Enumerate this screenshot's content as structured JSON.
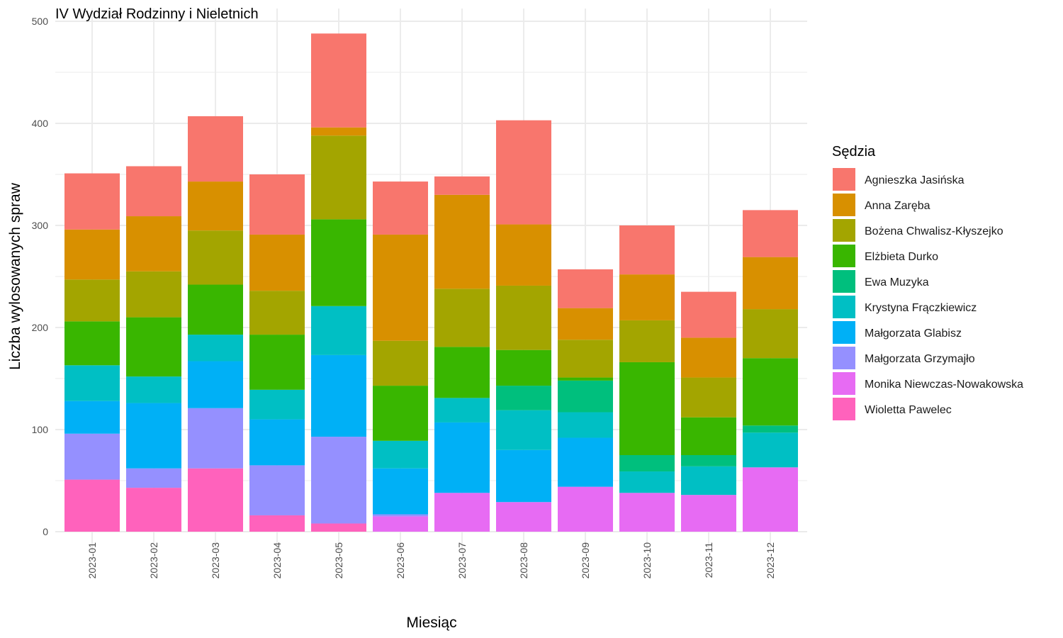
{
  "chart_data": {
    "type": "bar",
    "stacked": true,
    "title": "IV Wydział Rodzinny i Nieletnich",
    "xlabel": "Miesiąc",
    "ylabel": "Liczba wylosowanych spraw",
    "ylim": [
      0,
      500
    ],
    "yticks": [
      0,
      100,
      200,
      300,
      400,
      500
    ],
    "grid": true,
    "legend_title": "Sędzia",
    "legend_position": "right",
    "categories": [
      "2023-01",
      "2023-02",
      "2023-03",
      "2023-04",
      "2023-05",
      "2023-06",
      "2023-07",
      "2023-08",
      "2023-09",
      "2023-10",
      "2023-11",
      "2023-12"
    ],
    "series": [
      {
        "name": "Agnieszka Jasińska",
        "color": "#F8766D",
        "values": [
          55,
          49,
          64,
          59,
          92,
          52,
          18,
          102,
          38,
          48,
          45,
          46
        ]
      },
      {
        "name": "Anna Zaręba",
        "color": "#D89000",
        "values": [
          49,
          54,
          48,
          55,
          8,
          104,
          92,
          60,
          31,
          45,
          39,
          51
        ]
      },
      {
        "name": "Bożena Chwalisz-Kłyszejko",
        "color": "#A3A500",
        "values": [
          41,
          45,
          53,
          43,
          82,
          44,
          57,
          63,
          37,
          41,
          39,
          48
        ]
      },
      {
        "name": "Elżbieta Durko",
        "color": "#39B600",
        "values": [
          43,
          58,
          49,
          54,
          85,
          54,
          50,
          35,
          3,
          91,
          37,
          66
        ]
      },
      {
        "name": "Ewa Muzyka",
        "color": "#00BF7D",
        "values": [
          0,
          0,
          0,
          0,
          0,
          0,
          0,
          24,
          31,
          16,
          11,
          7
        ]
      },
      {
        "name": "Krystyna Frączkiewicz",
        "color": "#00BFC4",
        "values": [
          35,
          26,
          26,
          29,
          48,
          27,
          24,
          39,
          25,
          21,
          28,
          34
        ]
      },
      {
        "name": "Małgorzata Glabisz",
        "color": "#00B0F6",
        "values": [
          32,
          64,
          46,
          45,
          80,
          45,
          69,
          51,
          48,
          0,
          0,
          0
        ]
      },
      {
        "name": "Małgorzata Grzymajło",
        "color": "#9590FF",
        "values": [
          45,
          19,
          59,
          49,
          85,
          2,
          0,
          0,
          0,
          0,
          0,
          0
        ]
      },
      {
        "name": "Monika Niewczas-Nowakowska",
        "color": "#E76BF3",
        "values": [
          0,
          0,
          0,
          0,
          0,
          15,
          38,
          29,
          44,
          38,
          36,
          63
        ]
      },
      {
        "name": "Wioletta Pawelec",
        "color": "#FF62BC",
        "values": [
          51,
          43,
          62,
          16,
          8,
          0,
          0,
          0,
          0,
          0,
          0,
          0
        ]
      }
    ]
  }
}
